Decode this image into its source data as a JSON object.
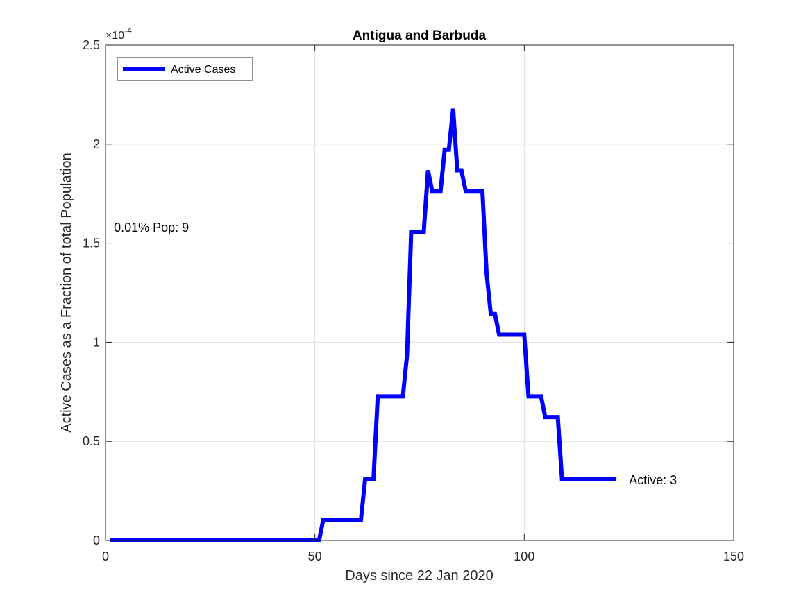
{
  "chart_data": {
    "type": "line",
    "title": "Antigua and Barbuda",
    "xlabel": "Days since 22 Jan 2020",
    "ylabel": "Active Cases as a Fraction of total Population",
    "xlim": [
      0,
      150
    ],
    "ylim": [
      0,
      0.00025
    ],
    "x_ticks": [
      0,
      50,
      100,
      150
    ],
    "x_tick_labels": [
      "0",
      "50",
      "100",
      "150"
    ],
    "y_ticks": [
      0,
      5e-05,
      0.0001,
      0.00015,
      0.0002,
      0.00025
    ],
    "y_tick_labels": [
      "0",
      "0.5",
      "1",
      "1.5",
      "2",
      "2.5"
    ],
    "y_exponent_label": "×10",
    "y_exponent_power": "-4",
    "grid": true,
    "legend_position": "top-left",
    "series": [
      {
        "name": "Active Cases",
        "color": "#0000ff",
        "x": [
          1,
          51,
          52,
          61,
          62,
          64,
          65,
          71,
          72,
          73,
          76,
          77,
          78,
          80,
          81,
          82,
          83,
          84,
          85,
          86,
          90,
          91,
          92,
          93,
          94,
          100,
          101,
          104,
          105,
          108,
          109,
          122
        ],
        "y": [
          0,
          0,
          1.04e-05,
          1.04e-05,
          3.11e-05,
          3.11e-05,
          7.27e-05,
          7.27e-05,
          9.34e-05,
          0.0001557,
          0.0001557,
          0.0001868,
          0.0001764,
          0.0001764,
          0.0001972,
          0.0001972,
          0.0002179,
          0.0001868,
          0.0001868,
          0.0001764,
          0.0001764,
          0.000135,
          0.0001142,
          0.0001142,
          0.0001038,
          0.0001038,
          7.27e-05,
          7.27e-05,
          6.23e-05,
          6.23e-05,
          3.11e-05,
          3.11e-05
        ]
      }
    ],
    "annotations": [
      {
        "text": "0.01% Pop: 9",
        "x": 2,
        "y": 0.000158
      },
      {
        "text": "Active: 3",
        "x": 125,
        "y": 3.05e-05
      }
    ]
  }
}
